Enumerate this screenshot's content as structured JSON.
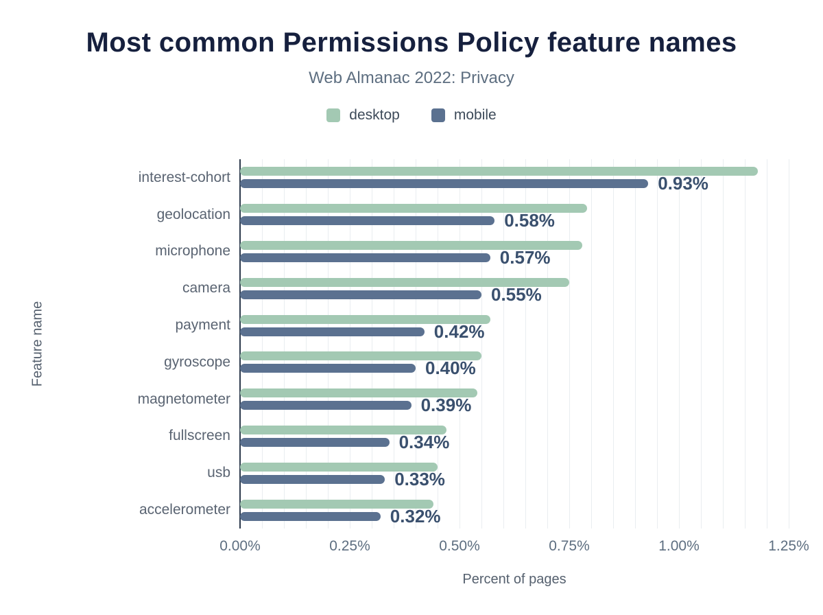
{
  "header": {
    "title": "Most common Permissions Policy feature names",
    "subtitle": "Web Almanac 2022: Privacy"
  },
  "legend": [
    {
      "label": "desktop",
      "color": "#a3c9b3"
    },
    {
      "label": "mobile",
      "color": "#5b7190"
    }
  ],
  "axes": {
    "x_title": "Percent of pages",
    "y_title": "Feature name"
  },
  "chart_data": {
    "type": "bar",
    "orientation": "horizontal",
    "title": "Most common Permissions Policy feature names",
    "subtitle": "Web Almanac 2022: Privacy",
    "xlabel": "Percent of pages",
    "ylabel": "Feature name",
    "categories": [
      "interest-cohort",
      "geolocation",
      "microphone",
      "camera",
      "payment",
      "gyroscope",
      "magnetometer",
      "fullscreen",
      "usb",
      "accelerometer"
    ],
    "series": [
      {
        "name": "desktop",
        "color": "#a3c9b3",
        "values": [
          1.18,
          0.79,
          0.78,
          0.75,
          0.57,
          0.55,
          0.54,
          0.47,
          0.45,
          0.44
        ]
      },
      {
        "name": "mobile",
        "color": "#5b7190",
        "values": [
          0.93,
          0.58,
          0.57,
          0.55,
          0.42,
          0.4,
          0.39,
          0.34,
          0.33,
          0.32
        ]
      }
    ],
    "bar_labels": [
      "0.93%",
      "0.58%",
      "0.57%",
      "0.55%",
      "0.42%",
      "0.40%",
      "0.39%",
      "0.34%",
      "0.33%",
      "0.32%"
    ],
    "x_ticks": [
      "0.00%",
      "0.25%",
      "0.50%",
      "0.75%",
      "1.00%",
      "1.25%"
    ],
    "xlim": [
      0,
      1.25
    ],
    "grid_step": 0.05,
    "grid": true,
    "legend_position": "top"
  }
}
